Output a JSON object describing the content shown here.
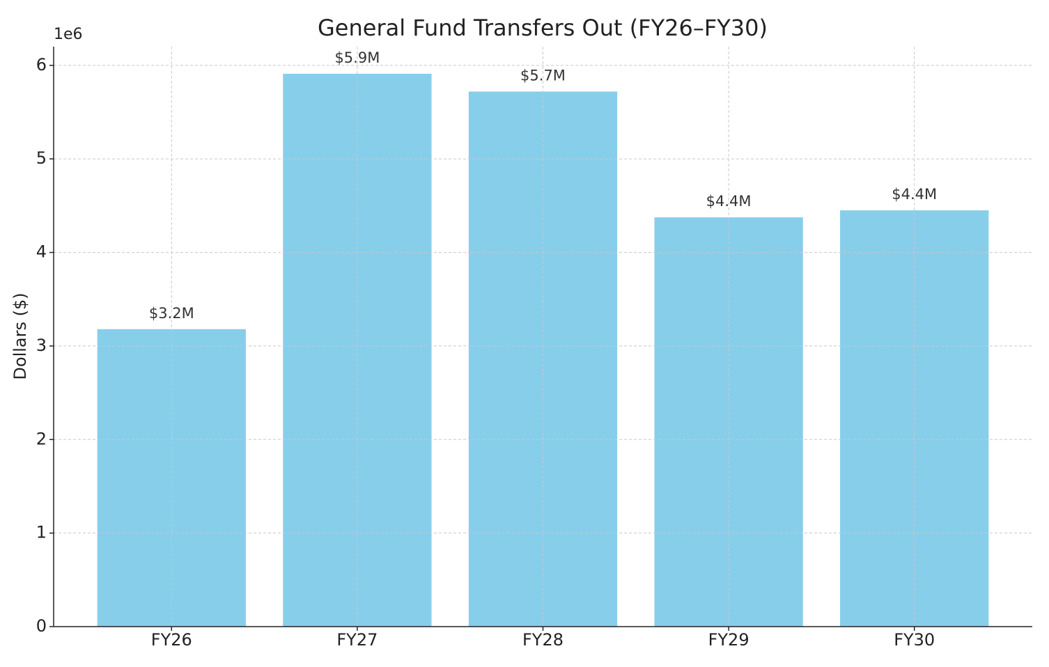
{
  "chart_data": {
    "type": "bar",
    "title": "General Fund Transfers Out (FY26–FY30)",
    "y_label": "Dollars ($)",
    "y_offset_label": "1e6",
    "categories": [
      "FY26",
      "FY27",
      "FY28",
      "FY29",
      "FY30"
    ],
    "values": [
      3.18,
      5.91,
      5.72,
      4.375,
      4.45
    ],
    "value_labels": [
      "$3.2M",
      "$5.9M",
      "$5.7M",
      "$4.4M",
      "$4.4M"
    ],
    "color": "#87ceeb",
    "ylim": [
      0,
      6.2
    ],
    "yticks": [
      0,
      1,
      2,
      3,
      4,
      5,
      6
    ],
    "grid": true
  }
}
